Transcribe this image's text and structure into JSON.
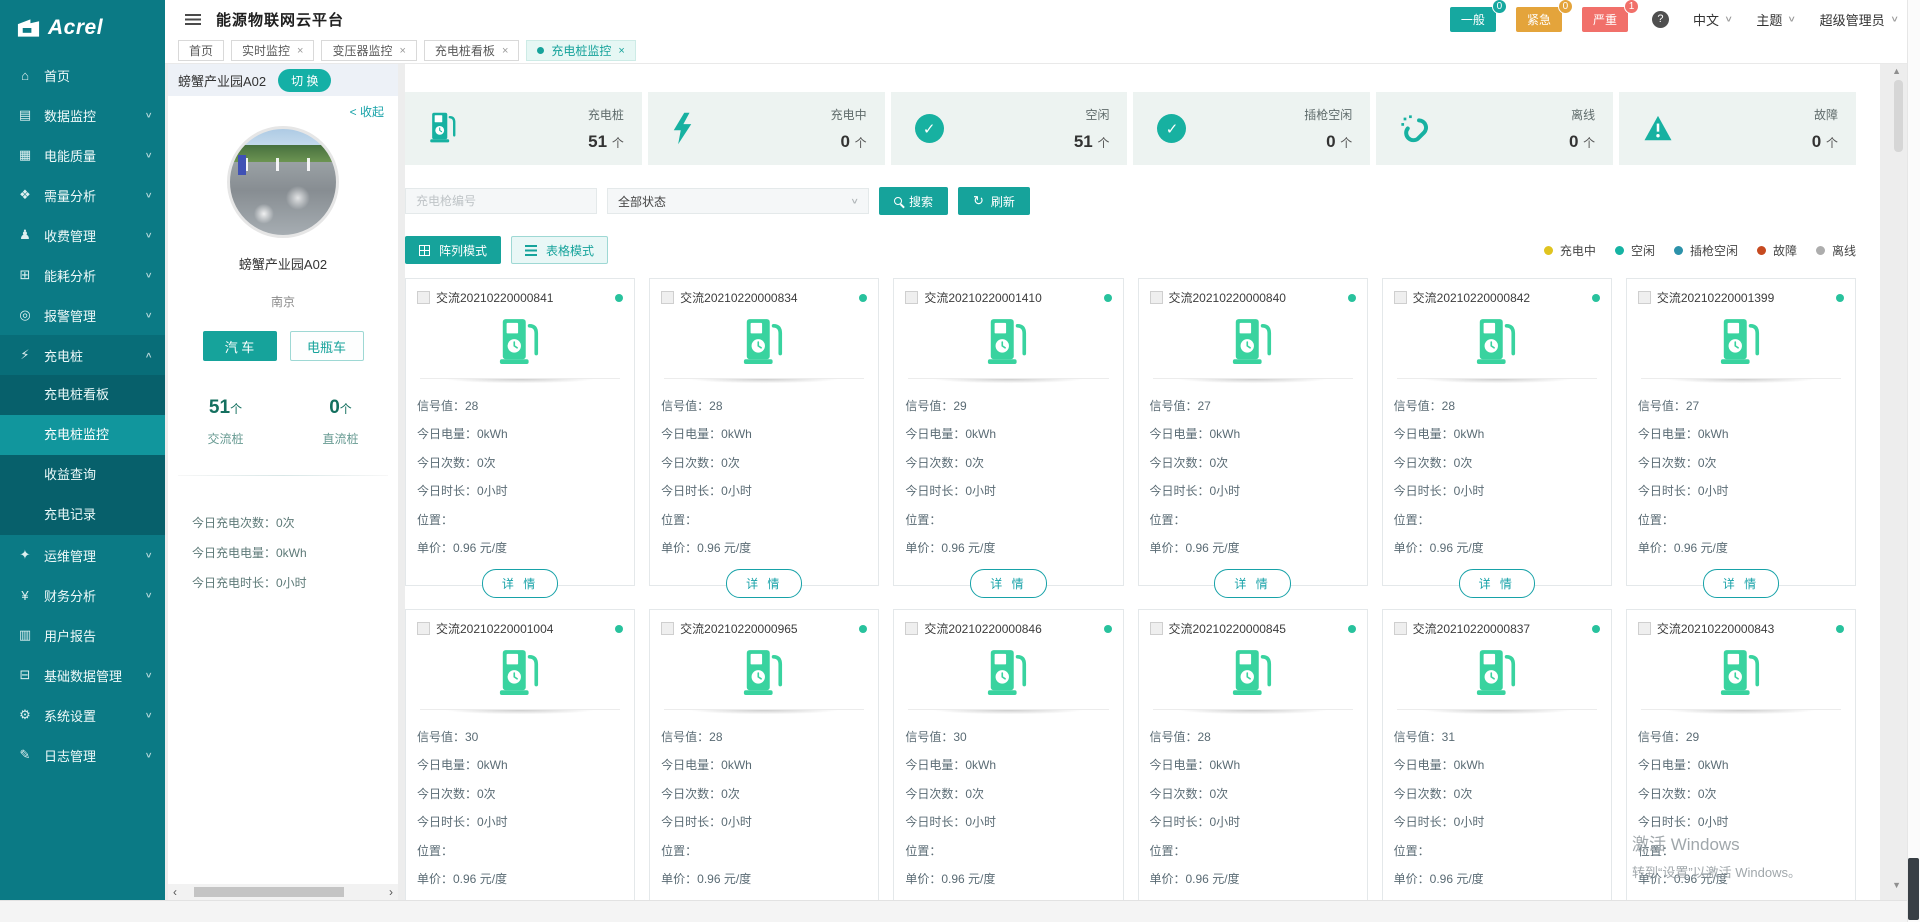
{
  "logo": {
    "brand": "Acrel"
  },
  "header": {
    "title": "能源物联网云平台",
    "alarm_badges": [
      {
        "label": "一般",
        "count": "0",
        "color": "#16a8a0"
      },
      {
        "label": "紧急",
        "count": "0",
        "color": "#e4a43b"
      },
      {
        "label": "严重",
        "count": "1",
        "color": "#f1706a"
      }
    ],
    "language": "中文",
    "theme": "主题",
    "user": "超级管理员"
  },
  "icons": {
    "help": "?",
    "chevron_down": "∨",
    "chevron_up": "∧",
    "collapse_left": "<",
    "close": "×",
    "scroll_up": "▲",
    "scroll_down": "▼",
    "scroll_left": "‹",
    "scroll_right": "›",
    "refresh": "↻",
    "check": "✓"
  },
  "sidebar": {
    "items": [
      {
        "label": "首页",
        "icon": "home-icon",
        "glyph": "⌂"
      },
      {
        "label": "数据监控",
        "icon": "data-monitor-icon",
        "glyph": "▤",
        "expandable": true
      },
      {
        "label": "电能质量",
        "icon": "power-quality-icon",
        "glyph": "▦",
        "expandable": true
      },
      {
        "label": "需量分析",
        "icon": "demand-analysis-icon",
        "glyph": "❖",
        "expandable": true
      },
      {
        "label": "收费管理",
        "icon": "billing-icon",
        "glyph": "♟",
        "expandable": true
      },
      {
        "label": "能耗分析",
        "icon": "energy-analysis-icon",
        "glyph": "⊞",
        "expandable": true
      },
      {
        "label": "报警管理",
        "icon": "alarm-icon",
        "glyph": "◎",
        "expandable": true
      },
      {
        "label": "充电桩",
        "icon": "charging-pile-icon",
        "glyph": "⚡",
        "expandable": true,
        "expanded": true,
        "subitems": [
          {
            "label": "充电桩看板"
          },
          {
            "label": "充电桩监控",
            "active": true
          },
          {
            "label": "收益查询"
          },
          {
            "label": "充电记录"
          }
        ]
      },
      {
        "label": "运维管理",
        "icon": "operations-icon",
        "glyph": "✦",
        "expandable": true
      },
      {
        "label": "财务分析",
        "icon": "finance-icon",
        "glyph": "¥",
        "expandable": true
      },
      {
        "label": "用户报告",
        "icon": "user-report-icon",
        "glyph": "▥"
      },
      {
        "label": "基础数据管理",
        "icon": "base-data-icon",
        "glyph": "⊟",
        "expandable": true
      },
      {
        "label": "系统设置",
        "icon": "settings-icon",
        "glyph": "⚙",
        "expandable": true
      },
      {
        "label": "日志管理",
        "icon": "log-icon",
        "glyph": "✎",
        "expandable": true
      }
    ]
  },
  "tabs": [
    {
      "label": "首页"
    },
    {
      "label": "实时监控",
      "closable": true
    },
    {
      "label": "变压器监控",
      "closable": true
    },
    {
      "label": "充电桩看板",
      "closable": true
    },
    {
      "label": "充电桩监控",
      "closable": true,
      "active": true
    }
  ],
  "station": {
    "name": "螃蟹产业园A02",
    "switch_label": "切 换",
    "collapse_label": "收起",
    "city": "南京",
    "btn_car": "汽 车",
    "btn_scooter": "电瓶车",
    "ac_count": "51",
    "ac_label": "交流桩",
    "dc_count": "0",
    "dc_label": "直流桩",
    "unit": "个",
    "colon": "：",
    "today": [
      {
        "label": "今日充电次数",
        "value": "0次"
      },
      {
        "label": "今日充电电量",
        "value": "0kWh"
      },
      {
        "label": "今日充电时长",
        "value": "0小时"
      }
    ]
  },
  "stats": [
    {
      "label": "充电桩",
      "value": "51",
      "unit": "个",
      "icon": "charger-icon"
    },
    {
      "label": "充电中",
      "value": "0",
      "unit": "个",
      "icon": "charging-bolt-icon"
    },
    {
      "label": "空闲",
      "value": "51",
      "unit": "个",
      "icon": "idle-check-icon"
    },
    {
      "label": "插枪空闲",
      "value": "0",
      "unit": "个",
      "icon": "plugged-idle-check-icon"
    },
    {
      "label": "离线",
      "value": "0",
      "unit": "个",
      "icon": "offline-link-icon"
    },
    {
      "label": "故障",
      "value": "0",
      "unit": "个",
      "icon": "fault-warning-icon"
    }
  ],
  "filter": {
    "gun_placeholder": "充电枪编号",
    "status_value": "全部状态",
    "search_label": "搜索",
    "refresh_label": "刷新"
  },
  "modes": {
    "grid_label": "阵列模式",
    "table_label": "表格模式"
  },
  "legend": [
    {
      "label": "充电中",
      "color": "#e0c420"
    },
    {
      "label": "空闲",
      "color": "#16b3a3"
    },
    {
      "label": "插枪空闲",
      "color": "#2c92aa"
    },
    {
      "label": "故障",
      "color": "#c64a20"
    },
    {
      "label": "离线",
      "color": "#adadad"
    }
  ],
  "pile_labels": {
    "colon": "：",
    "signal": "信号值",
    "energy": "今日电量",
    "count": "今日次数",
    "duration": "今日时长",
    "location": "位置",
    "price": "单价",
    "detail": "详 情"
  },
  "pile_defaults": {
    "energy": "0kWh",
    "count": "0次",
    "duration": "0小时",
    "location": "",
    "price": "0.96 元/度"
  },
  "piles": [
    {
      "id": "交流20210220000841",
      "signal": "28"
    },
    {
      "id": "交流20210220000834",
      "signal": "28"
    },
    {
      "id": "交流20210220001410",
      "signal": "29"
    },
    {
      "id": "交流20210220000840",
      "signal": "27"
    },
    {
      "id": "交流20210220000842",
      "signal": "28"
    },
    {
      "id": "交流20210220001399",
      "signal": "27"
    },
    {
      "id": "交流20210220001004",
      "signal": "30"
    },
    {
      "id": "交流20210220000965",
      "signal": "28"
    },
    {
      "id": "交流20210220000846",
      "signal": "30"
    },
    {
      "id": "交流20210220000845",
      "signal": "28"
    },
    {
      "id": "交流20210220000837",
      "signal": "31"
    },
    {
      "id": "交流20210220000843",
      "signal": "29"
    }
  ],
  "watermark": {
    "line1": "激活 Windows",
    "line2": "转到“设置”以激活 Windows。"
  }
}
